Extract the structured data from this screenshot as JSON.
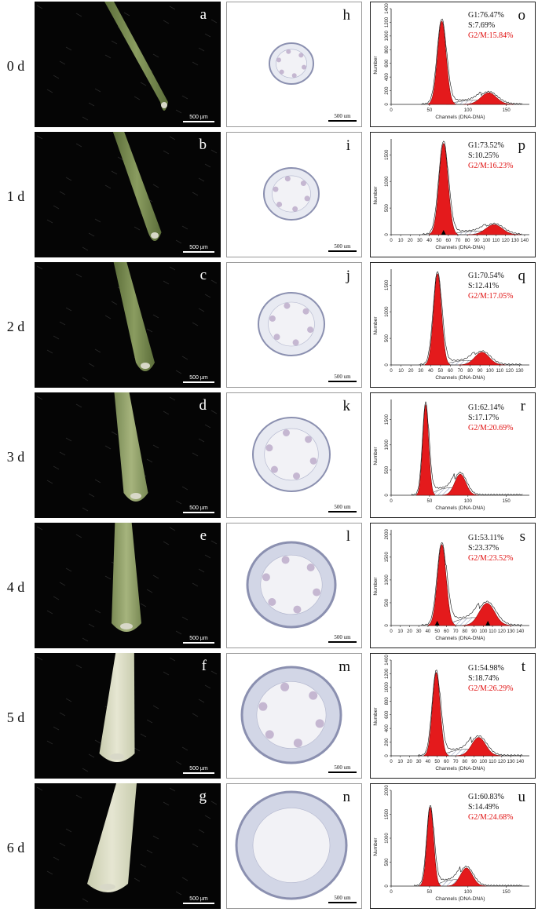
{
  "figure": {
    "rows": [
      {
        "label": "0 d",
        "photo_letter": "a",
        "section_letter": "h",
        "flow_letter": "o",
        "g1": "G1:76.47%",
        "s": "S:7.69%",
        "g2m": "G2/M:15.84%",
        "xmax": 180,
        "xticks": [
          0,
          50,
          100,
          150
        ],
        "yticks": [
          0,
          200,
          400,
          600,
          800,
          1000,
          1200,
          1400
        ],
        "ymax": 1400,
        "g1_peak": 66,
        "g1_height": 1220,
        "g2_peak": 127,
        "g2_height": 170,
        "arrows": []
      },
      {
        "label": "1 d",
        "photo_letter": "b",
        "section_letter": "i",
        "flow_letter": "p",
        "g1": "G1:73.52%",
        "s": "S:10.25%",
        "g2m": "G2/M:16.23%",
        "xmax": 145,
        "xticks": [
          0,
          10,
          20,
          30,
          40,
          50,
          60,
          70,
          80,
          90,
          100,
          110,
          120,
          130,
          140
        ],
        "yticks": [
          0,
          500,
          1000,
          1500
        ],
        "ymax": 1800,
        "g1_peak": 55,
        "g1_height": 1720,
        "g2_peak": 108,
        "g2_height": 190,
        "arrows": [
          55
        ]
      },
      {
        "label": "2 d",
        "photo_letter": "c",
        "section_letter": "j",
        "flow_letter": "q",
        "g1": "G1:70.54%",
        "s": "S:12.41%",
        "g2m": "G2/M:17.05%",
        "xmax": 140,
        "xticks": [
          0,
          10,
          20,
          30,
          40,
          50,
          60,
          70,
          80,
          90,
          100,
          110,
          120,
          130
        ],
        "yticks": [
          0,
          500,
          1000,
          1500
        ],
        "ymax": 1800,
        "g1_peak": 47,
        "g1_height": 1720,
        "g2_peak": 92,
        "g2_height": 240,
        "arrows": []
      },
      {
        "label": "3 d",
        "photo_letter": "d",
        "section_letter": "k",
        "flow_letter": "r",
        "g1": "G1:62.14%",
        "s": "S:17.17%",
        "g2m": "G2/M:20.69%",
        "xmax": 180,
        "xticks": [
          0,
          50,
          100,
          150
        ],
        "yticks": [
          0,
          500,
          1000,
          1500
        ],
        "ymax": 1900,
        "g1_peak": 45,
        "g1_height": 1800,
        "g2_peak": 90,
        "g2_height": 420,
        "arrows": []
      },
      {
        "label": "4 d",
        "photo_letter": "e",
        "section_letter": "l",
        "flow_letter": "s",
        "g1": "G1:53.11%",
        "s": "S:23.37%",
        "g2m": "G2/M:23.52%",
        "xmax": 150,
        "xticks": [
          0,
          10,
          20,
          30,
          40,
          50,
          60,
          70,
          80,
          90,
          100,
          110,
          120,
          130,
          140
        ],
        "yticks": [
          0,
          500,
          1000,
          1500,
          2000
        ],
        "ymax": 2100,
        "g1_peak": 55,
        "g1_height": 1780,
        "g2_peak": 104,
        "g2_height": 490,
        "arrows": [
          50,
          105
        ]
      },
      {
        "label": "5 d",
        "photo_letter": "f",
        "section_letter": "m",
        "flow_letter": "t",
        "g1": "G1:54.98%",
        "s": "S:18.74%",
        "g2m": "G2/M:26.29%",
        "xmax": 150,
        "xticks": [
          0,
          10,
          20,
          30,
          40,
          50,
          60,
          70,
          80,
          90,
          100,
          110,
          120,
          130,
          140
        ],
        "yticks": [
          0,
          200,
          400,
          600,
          800,
          1000,
          1200,
          1400
        ],
        "ymax": 1400,
        "g1_peak": 49,
        "g1_height": 1220,
        "g2_peak": 95,
        "g2_height": 270,
        "arrows": []
      },
      {
        "label": "6 d",
        "photo_letter": "g",
        "section_letter": "n",
        "flow_letter": "u",
        "g1": "G1:60.83%",
        "s": "S:14.49%",
        "g2m": "G2/M:24.68%",
        "xmax": 180,
        "xticks": [
          0,
          50,
          100,
          150
        ],
        "yticks": [
          0,
          500,
          1000,
          1500,
          2000
        ],
        "ymax": 2000,
        "g1_peak": 51,
        "g1_height": 1650,
        "g2_peak": 98,
        "g2_height": 380,
        "arrows": []
      }
    ],
    "photo_scale": "500 µm",
    "section_scale": "500 um",
    "y_axis_label": "Number",
    "x_axis_label": "Channels (DNA-DNA)",
    "colors": {
      "peak_fill": "#e41a1c",
      "stat_red": "#e01010",
      "photo_bg": "#050505",
      "tissue_fill": "#e4e6ef",
      "tissue_stroke": "#8b90b0"
    }
  }
}
